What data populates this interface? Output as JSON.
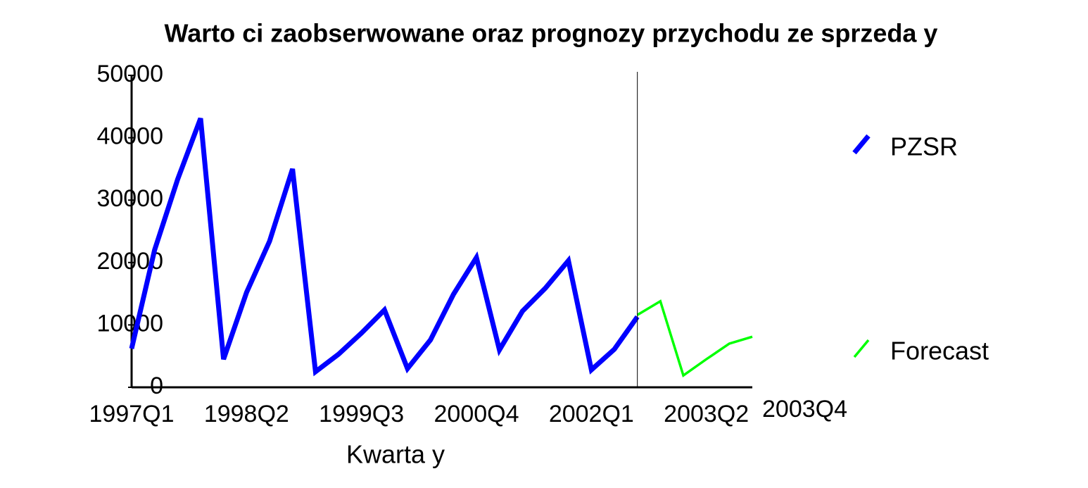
{
  "chart_data": {
    "type": "line",
    "title": "Warto  ci zaobserwowane oraz prognozy przychodu ze sprzeda  y",
    "x_label": "Kwarta y",
    "categories": [
      "1997Q1",
      null,
      null,
      null,
      null,
      "1998Q2",
      null,
      null,
      null,
      null,
      "1999Q3",
      null,
      null,
      null,
      null,
      "2000Q4",
      null,
      null,
      null,
      null,
      "2002Q1",
      null,
      null,
      null,
      null,
      "2003Q2",
      null,
      "2003Q4"
    ],
    "series": [
      {
        "name": "PZSR",
        "color": "#0000ff",
        "values": [
          6200,
          22000,
          33300,
          43100,
          4500,
          15200,
          23400,
          35000,
          2500,
          5300,
          8700,
          12400,
          3000,
          7600,
          14900,
          20800,
          6000,
          12200,
          15900,
          20300,
          2800,
          6100,
          11300,
          null,
          null,
          null,
          null,
          null
        ]
      },
      {
        "name": "Forecast",
        "color": "#00ff00",
        "values": [
          null,
          null,
          null,
          null,
          null,
          null,
          null,
          null,
          null,
          null,
          null,
          null,
          null,
          null,
          null,
          null,
          null,
          null,
          null,
          null,
          null,
          null,
          11600,
          13800,
          1900,
          4500,
          7000,
          8100
        ]
      }
    ],
    "ylim": [
      0,
      50000
    ],
    "yticks": [
      0,
      10000,
      20000,
      30000,
      40000,
      50000
    ]
  }
}
